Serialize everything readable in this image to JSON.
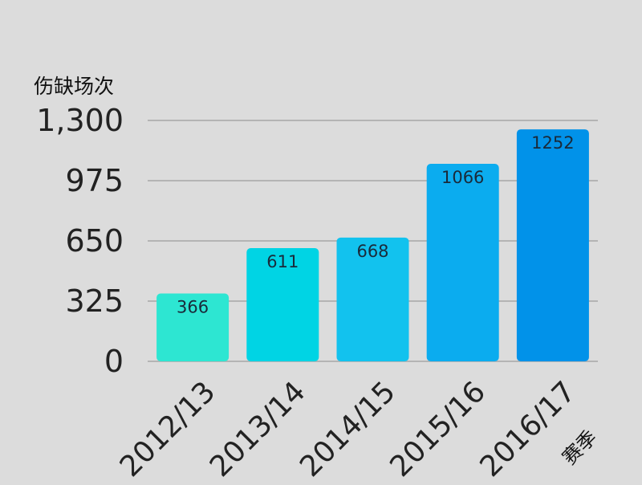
{
  "chart_data": {
    "type": "bar",
    "title": "",
    "ylabel": "伤缺场次",
    "xlabel": "赛季",
    "categories": [
      "2012/13",
      "2013/14",
      "2014/15",
      "2015/16",
      "2016/17"
    ],
    "values": [
      366,
      611,
      668,
      1066,
      1252
    ],
    "ylim": [
      0,
      1300
    ],
    "yticks": [
      "0",
      "325",
      "650",
      "975",
      "1,300"
    ],
    "ytick_values": [
      0,
      325,
      650,
      975,
      1300
    ],
    "grid": true,
    "bar_colors": [
      "#2de6d2",
      "#00d4e4",
      "#12c2ee",
      "#0bacef",
      "#0192e9"
    ],
    "data_labels": [
      "366",
      "611",
      "668",
      "1066",
      "1252"
    ]
  }
}
